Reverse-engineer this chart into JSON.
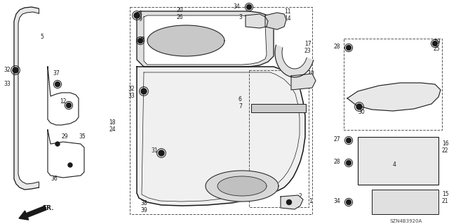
{
  "bg_color": "#ffffff",
  "line_color": "#1a1a1a",
  "part_code": "SZN4B3920A",
  "fig_w": 6.4,
  "fig_h": 3.19,
  "dpi": 100
}
